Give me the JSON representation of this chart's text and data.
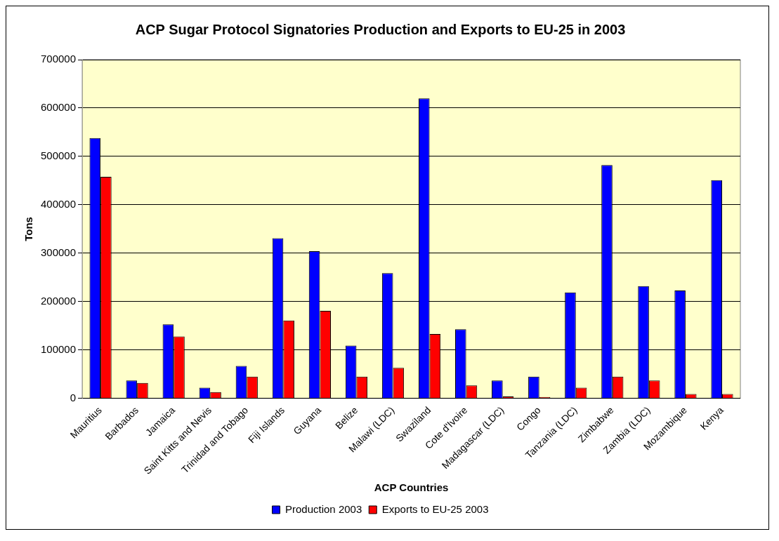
{
  "chart_data": {
    "type": "bar",
    "title": "ACP Sugar Protocol Signatories Production and Exports to EU-25 in 2003",
    "xlabel": "ACP Countries",
    "ylabel": "Tons",
    "categories": [
      "Mauritius",
      "Barbados",
      "Jamaica",
      "Saint Kitts and Nevis",
      "Trinidad and Tobago",
      "Fiji Islands",
      "Guyana",
      "Belize",
      "Malawi (LDC)",
      "Swaziland",
      "Cote d'Ivoire",
      "Madagascar (LDC)",
      "Congo",
      "Tanzania (LDC)",
      "Zimbabwe",
      "Zambia (LDC)",
      "Mozambique",
      "Kenya"
    ],
    "series": [
      {
        "name": "Production 2003",
        "color": "#0000ff",
        "values": [
          538000,
          37000,
          153000,
          22000,
          67000,
          331000,
          304000,
          109000,
          259000,
          620000,
          143000,
          37000,
          45000,
          219000,
          482000,
          232000,
          223000,
          451000
        ]
      },
      {
        "name": "Exports to EU-25 2003",
        "color": "#ff0000",
        "values": [
          458000,
          32000,
          128000,
          13000,
          45000,
          161000,
          181000,
          45000,
          63000,
          133000,
          27000,
          4000,
          3000,
          22000,
          45000,
          37000,
          9000,
          9000
        ]
      }
    ],
    "ylim": [
      0,
      700000
    ],
    "yticks": [
      0,
      100000,
      200000,
      300000,
      400000,
      500000,
      600000,
      700000
    ],
    "grid": "y",
    "legend": "bottom"
  }
}
